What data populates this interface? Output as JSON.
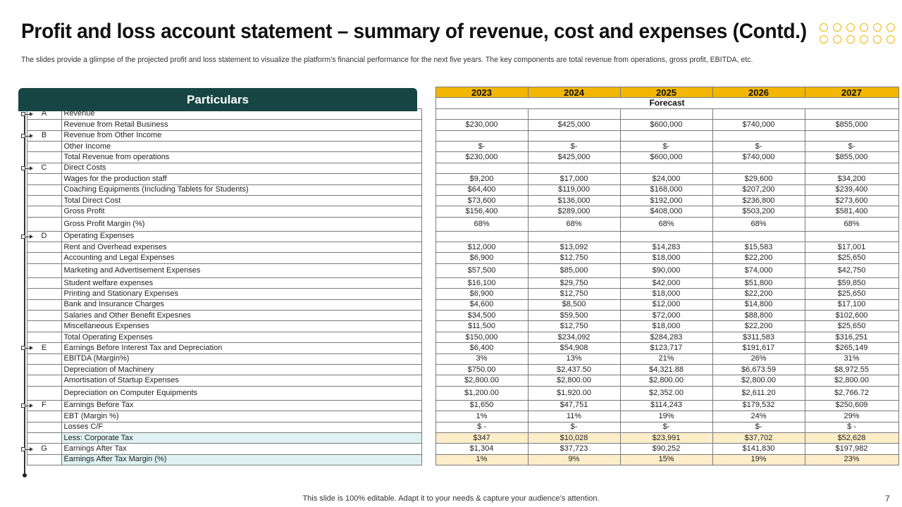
{
  "slide": {
    "title": "Profit and loss account statement – summary of revenue, cost and expenses (Contd.)",
    "subtitle": "The slides provide a glimpse of the projected profit and loss statement to visualize the platform’s financial performance for the next five years. The key components are total revenue from operations, gross profit, EBITDA,  etc.",
    "footer": "This slide is 100% editable. Adapt it to your needs & capture your audience’s attention.",
    "page_number": "7",
    "accent_color": "#f2b705",
    "header_color": "#174543"
  },
  "table": {
    "particulars_label": "Particulars",
    "forecast_label": "Forecast",
    "years": [
      "2023",
      "2024",
      "2025",
      "2026",
      "2027"
    ],
    "rows": [
      {
        "sec": "A",
        "label": "Revenue",
        "v": [
          "",
          "",
          "",
          "",
          ""
        ]
      },
      {
        "sec": "",
        "label": "Revenue from Retail Business",
        "v": [
          "$230,000",
          "$425,000",
          "$600,000",
          "$740,000",
          "$855,000"
        ]
      },
      {
        "sec": "B",
        "label": "Revenue from Other Income",
        "v": [
          "",
          "",
          "",
          "",
          ""
        ]
      },
      {
        "sec": "",
        "label": "Other Income",
        "v": [
          "$-",
          "$-",
          "$-",
          "$-",
          "$-"
        ]
      },
      {
        "sec": "",
        "label": "Total Revenue from operations",
        "v": [
          "$230,000",
          "$425,000",
          "$600,000",
          "$740,000",
          "$855,000"
        ]
      },
      {
        "sec": "C",
        "label": "Direct Costs",
        "v": [
          "",
          "",
          "",
          "",
          ""
        ]
      },
      {
        "sec": "",
        "label": "Wages for the production staff",
        "v": [
          "$9,200",
          "$17,000",
          "$24,000",
          "$29,600",
          "$34,200"
        ]
      },
      {
        "sec": "",
        "label": "Coaching Equipments (Including Tablets for Students)",
        "v": [
          "$64,400",
          "$119,000",
          "$168,000",
          "$207,200",
          "$239,400"
        ]
      },
      {
        "sec": "",
        "label": " Total Direct Cost",
        "v": [
          "$73,600",
          "$136,000",
          "$192,000",
          "$236,800",
          "$273,600"
        ]
      },
      {
        "sec": "",
        "label": "Gross Profit",
        "v": [
          "$156,400",
          "$289,000",
          "$408,000",
          "$503,200",
          "$581,400"
        ]
      },
      {
        "sec": "",
        "label": "Gross Profit Margin (%)",
        "v": [
          "68%",
          "68%",
          "68%",
          "68%",
          "68%"
        ],
        "tall": true
      },
      {
        "sec": "D",
        "label": "Operating Expenses",
        "v": [
          "",
          "",
          "",
          "",
          ""
        ]
      },
      {
        "sec": "",
        "label": "Rent and Overhead expenses",
        "v": [
          "$12,000",
          "$13,092",
          "$14,283",
          "$15,583",
          "$17,001"
        ]
      },
      {
        "sec": "",
        "label": "Accounting and Legal Expenses",
        "v": [
          "$6,900",
          "$12,750",
          "$18,000",
          "$22,200",
          "$25,650"
        ]
      },
      {
        "sec": "",
        "label": "Marketing and Advertisement Expenses",
        "v": [
          "$57,500",
          "$85,000",
          "$90,000",
          "$74,000",
          "$42,750"
        ],
        "tall": true
      },
      {
        "sec": "",
        "label": "Student welfare expenses",
        "v": [
          "$16,100",
          "$29,750",
          "$42,000",
          "$51,800",
          "$59,850"
        ]
      },
      {
        "sec": "",
        "label": "Printing and Stationary Expenses",
        "v": [
          "$6,900",
          "$12,750",
          "$18,000",
          "$22,200",
          "$25,650"
        ]
      },
      {
        "sec": "",
        "label": "Bank and Insurance Charges",
        "v": [
          "$4,600",
          "$8,500",
          "$12,000",
          "$14,800",
          "$17,100"
        ]
      },
      {
        "sec": "",
        "label": "Salaries and Other Benefit Expesnes",
        "v": [
          "$34,500",
          "$59,500",
          "$72,000",
          "$88,800",
          "$102,600"
        ]
      },
      {
        "sec": "",
        "label": "Miscellaneous Expenses",
        "v": [
          "$11,500",
          "$12,750",
          "$18,000",
          "$22,200",
          "$25,650"
        ]
      },
      {
        "sec": "",
        "label": "Total Operating Expenses",
        "v": [
          "$150,000",
          "$234,092",
          "$284,283",
          "$311,583",
          "$316,251"
        ]
      },
      {
        "sec": "E",
        "label": "Earnings Before Interest Tax and Depreciation",
        "v": [
          "$6,400",
          "$54,908",
          "$123,717",
          "$191,617",
          "$265,149"
        ]
      },
      {
        "sec": "",
        "label": "EBITDA  (Margin%)",
        "v": [
          "3%",
          "13%",
          "21%",
          "26%",
          "31%"
        ]
      },
      {
        "sec": "",
        "label": "Depreciation of Machinery",
        "v": [
          "$750.00",
          "$2,437.50",
          "$4,321.88",
          "$6,673.59",
          "$8,972.55"
        ]
      },
      {
        "sec": "",
        "label": "Amortisation of Startup Expenses",
        "v": [
          "$2,800.00",
          "$2,800.00",
          "$2,800.00",
          "$2,800.00",
          "$2,800.00"
        ]
      },
      {
        "sec": "",
        "label": "Depreciation on Computer Equipments",
        "v": [
          "$1,200.00",
          "$1,920.00",
          "$2,352.00",
          "$2,611.20",
          "$2,766.72"
        ],
        "tall": true
      },
      {
        "sec": "F",
        "label": "Earnings Before Tax",
        "v": [
          "$1,650",
          "$47,751",
          "$114,243",
          "$179,532",
          "$250,609"
        ]
      },
      {
        "sec": "",
        "label": "EBT (Margin %)",
        "v": [
          "1%",
          "11%",
          "19%",
          "24%",
          "29%"
        ]
      },
      {
        "sec": "",
        "label": "Losses C/F",
        "v": [
          "$ -",
          "$-",
          "$-",
          "$-",
          "$         -"
        ]
      },
      {
        "sec": "",
        "label": "Less: Corporate Tax",
        "v": [
          "$347",
          "$10,028",
          "$23,991",
          "$37,702",
          "$52,628"
        ],
        "hl": true
      },
      {
        "sec": "G",
        "label": "Earnings After Tax",
        "v": [
          "$1,304",
          "$37,723",
          "$90,252",
          "$141,830",
          "$197,982"
        ]
      },
      {
        "sec": "",
        "label": "Earnings After Tax Margin (%)",
        "v": [
          "1%",
          "9%",
          "15%",
          "19%",
          "23%"
        ],
        "hl": true
      }
    ]
  }
}
